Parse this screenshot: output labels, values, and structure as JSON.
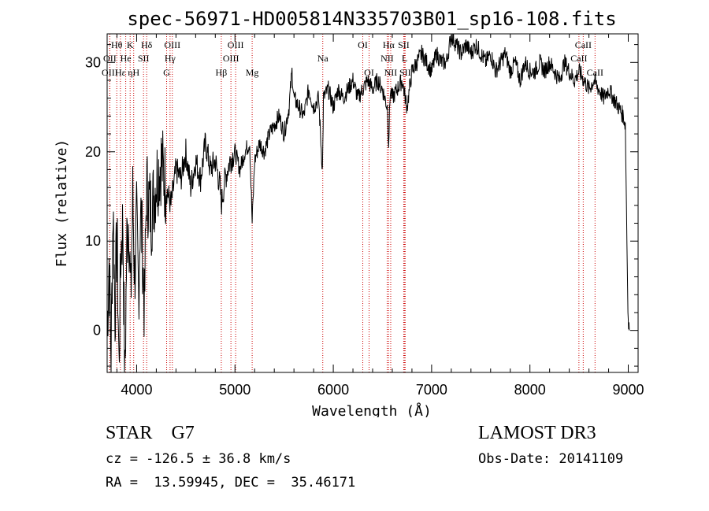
{
  "chart_data": {
    "type": "line",
    "title": "spec-56971-HD005814N335703B01_sp16-108.fits",
    "xlabel": "Wavelength (Å)",
    "ylabel": "Flux (relative)",
    "xlim": [
      3700,
      9100
    ],
    "ylim": [
      -4.7,
      33.2
    ],
    "x_ticks": [
      4000,
      5000,
      6000,
      7000,
      8000,
      9000
    ],
    "y_ticks": [
      0,
      10,
      20,
      30
    ],
    "series": [
      {
        "name": "flux",
        "x": [
          3700,
          3720,
          3740,
          3760,
          3780,
          3800,
          3820,
          3840,
          3860,
          3880,
          3900,
          3920,
          3940,
          3960,
          3980,
          4000,
          4020,
          4040,
          4060,
          4080,
          4100,
          4150,
          4200,
          4250,
          4300,
          4350,
          4400,
          4450,
          4500,
          4550,
          4600,
          4650,
          4700,
          4750,
          4800,
          4850,
          4860,
          4900,
          4950,
          5000,
          5050,
          5100,
          5150,
          5175,
          5200,
          5250,
          5300,
          5350,
          5400,
          5450,
          5500,
          5550,
          5580,
          5600,
          5650,
          5700,
          5750,
          5800,
          5850,
          5890,
          5900,
          5950,
          6000,
          6050,
          6100,
          6150,
          6200,
          6250,
          6300,
          6350,
          6400,
          6450,
          6500,
          6550,
          6563,
          6580,
          6600,
          6650,
          6700,
          6750,
          6800,
          6850,
          6900,
          6950,
          7000,
          7050,
          7100,
          7150,
          7200,
          7250,
          7300,
          7350,
          7400,
          7450,
          7500,
          7550,
          7600,
          7650,
          7700,
          7750,
          7800,
          7850,
          7900,
          7950,
          8000,
          8050,
          8100,
          8150,
          8200,
          8250,
          8300,
          8350,
          8400,
          8450,
          8500,
          8550,
          8600,
          8650,
          8700,
          8750,
          8800,
          8850,
          8900,
          8950,
          8970,
          8990,
          9000,
          9010
        ],
        "y": [
          0,
          8,
          -3,
          14,
          2,
          11,
          -4,
          9,
          12,
          -6,
          10,
          13,
          3,
          15,
          6,
          12,
          4,
          14,
          9,
          2,
          16,
          13,
          17,
          19,
          16,
          14,
          18,
          17,
          20,
          16,
          19,
          17,
          21,
          18,
          19,
          16,
          14,
          17,
          19,
          20,
          18,
          20,
          21,
          12,
          19,
          21,
          20,
          22,
          23,
          24,
          22,
          25,
          29,
          26,
          25,
          24,
          27,
          25,
          26,
          18,
          26,
          27,
          25,
          27,
          26,
          27,
          28,
          26,
          27,
          28,
          27,
          28,
          27,
          25,
          21,
          27,
          26,
          27,
          28,
          25,
          29,
          30,
          31,
          30,
          29,
          31,
          30,
          30,
          33,
          32,
          31,
          32,
          31,
          32,
          31,
          30,
          31,
          29,
          30,
          31,
          29,
          30,
          28,
          30,
          29,
          29,
          30,
          29,
          30,
          29,
          28,
          30,
          29,
          28,
          29,
          28,
          27,
          28,
          27,
          26,
          27,
          26,
          25,
          24,
          23,
          7,
          1,
          0
        ]
      }
    ],
    "lines": [
      {
        "label": "Hθ",
        "x": 3798,
        "row": 1
      },
      {
        "label": "K",
        "x": 3934,
        "row": 1
      },
      {
        "label": "Hδ",
        "x": 4102,
        "row": 1
      },
      {
        "label": "OIII",
        "x": 4363,
        "row": 1
      },
      {
        "label": "OIII",
        "x": 5007,
        "row": 1
      },
      {
        "label": "OI",
        "x": 6300,
        "row": 1
      },
      {
        "label": "Hα",
        "x": 6563,
        "row": 1
      },
      {
        "label": "SII",
        "x": 6716,
        "row": 1
      },
      {
        "label": "CaII",
        "x": 8542,
        "row": 1
      },
      {
        "label": "OII",
        "x": 3727,
        "row": 2
      },
      {
        "label": "He",
        "x": 3889,
        "row": 2
      },
      {
        "label": "SII",
        "x": 4070,
        "row": 2
      },
      {
        "label": "Hγ",
        "x": 4340,
        "row": 2
      },
      {
        "label": "OIII",
        "x": 4959,
        "row": 2
      },
      {
        "label": "Na",
        "x": 5893,
        "row": 2
      },
      {
        "label": "NII",
        "x": 6548,
        "row": 2
      },
      {
        "label": "L",
        "x": 6725,
        "row": 2
      },
      {
        "label": "CaII",
        "x": 8498,
        "row": 2
      },
      {
        "label": "OIII",
        "x": 3727,
        "row": 3
      },
      {
        "label": "Hε",
        "x": 3835,
        "row": 3
      },
      {
        "label": "ηH",
        "x": 3970,
        "row": 3
      },
      {
        "label": "G",
        "x": 4305,
        "row": 3
      },
      {
        "label": "Hβ",
        "x": 4861,
        "row": 3
      },
      {
        "label": "Mg",
        "x": 5175,
        "row": 3
      },
      {
        "label": "OI",
        "x": 6364,
        "row": 3
      },
      {
        "label": "NII",
        "x": 6584,
        "row": 3
      },
      {
        "label": "SII",
        "x": 6731,
        "row": 3
      },
      {
        "label": "CaII",
        "x": 8662,
        "row": 3
      }
    ]
  },
  "info": {
    "object_class": "STAR",
    "subclass": "G7",
    "survey": "LAMOST DR3",
    "cz_line": "cz = -126.5 ± 36.8 km/s",
    "obs_date_line": "Obs-Date: 20141109",
    "radec_line": "RA =  13.59945, DEC =  35.46171"
  },
  "colors": {
    "spectrum": "#000000",
    "line_markers": "#cc0000",
    "axes": "#000000"
  }
}
